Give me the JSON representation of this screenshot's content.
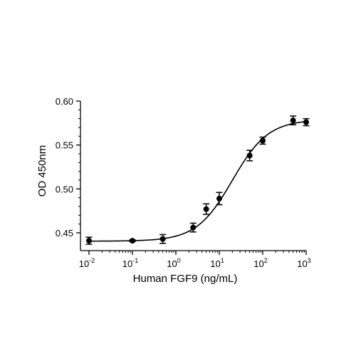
{
  "chart_data": {
    "type": "scatter",
    "title": "",
    "xlabel": "Human FGF9 (ng/mL)",
    "ylabel": "OD 450nm",
    "x_scale": "log",
    "xlim": [
      0.01,
      1000
    ],
    "ylim": [
      0.43,
      0.6
    ],
    "x_ticks": [
      {
        "value": 0.01,
        "base": "10",
        "exp": "-2"
      },
      {
        "value": 0.1,
        "base": "10",
        "exp": "-1"
      },
      {
        "value": 1,
        "base": "10",
        "exp": "0"
      },
      {
        "value": 10,
        "base": "10",
        "exp": "1"
      },
      {
        "value": 100,
        "base": "10",
        "exp": "2"
      },
      {
        "value": 1000,
        "base": "10",
        "exp": "3"
      }
    ],
    "y_ticks": [
      {
        "value": 0.45,
        "label": "0.45"
      },
      {
        "value": 0.5,
        "label": "0.50"
      },
      {
        "value": 0.55,
        "label": "0.55"
      },
      {
        "value": 0.6,
        "label": "0.60"
      }
    ],
    "grid": false,
    "fit_curve": {
      "type": "4PL sigmoid",
      "bottom": 0.4405,
      "top": 0.579,
      "ec50": 20,
      "hill": 1.05
    },
    "series": [
      {
        "color": "#000000",
        "x": [
          0.01,
          0.1,
          0.5,
          2.5,
          5,
          10,
          50,
          100,
          500,
          1000
        ],
        "y": [
          0.441,
          0.441,
          0.443,
          0.456,
          0.477,
          0.489,
          0.538,
          0.555,
          0.578,
          0.576
        ],
        "err": [
          0.004,
          0.001,
          0.005,
          0.005,
          0.006,
          0.007,
          0.006,
          0.004,
          0.005,
          0.004
        ]
      }
    ]
  }
}
